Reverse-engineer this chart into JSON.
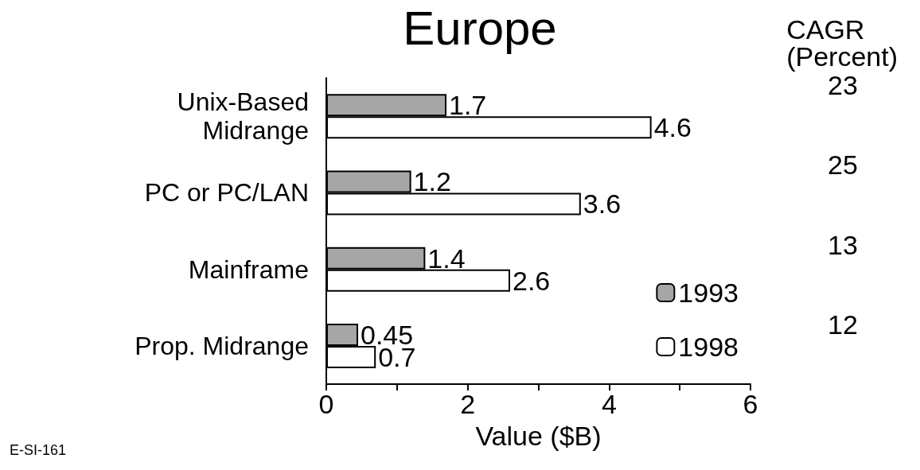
{
  "chart_data": {
    "type": "bar",
    "orientation": "horizontal",
    "title": "Europe",
    "xlabel": "Value ($B)",
    "categories": [
      "Unix-Based\nMidrange",
      "PC or PC/LAN",
      "Mainframe",
      "Prop. Midrange"
    ],
    "series": [
      {
        "name": "1993",
        "color": "#a6a6a6",
        "values": [
          1.7,
          1.2,
          1.4,
          0.45
        ]
      },
      {
        "name": "1998",
        "color": "#ffffff",
        "values": [
          4.6,
          3.6,
          2.6,
          0.7
        ]
      }
    ],
    "data_labels": true,
    "xlim": [
      0,
      6
    ],
    "xticks": [
      0,
      {
        "value": 1,
        "label": null
      },
      2,
      {
        "value": 3,
        "label": null
      },
      4,
      {
        "value": 5,
        "label": null
      },
      6
    ],
    "grid": false,
    "legend": "bottom right",
    "annotations": [
      "CAGR\n(Percent)",
      "23",
      "25",
      "13",
      "12",
      "E-SI-161"
    ]
  }
}
